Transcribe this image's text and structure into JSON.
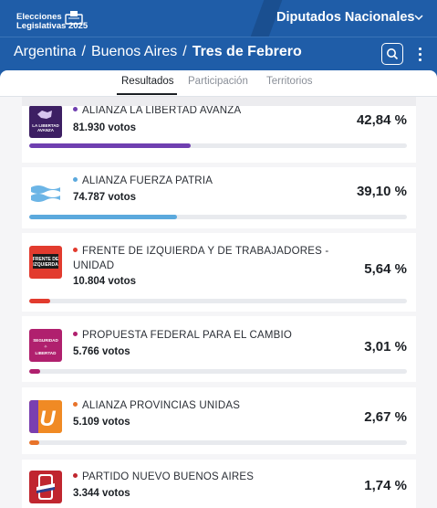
{
  "header": {
    "brand_line1": "Elecciones",
    "brand_line2": "Legislativas 2025",
    "chamber": "Diputados Nacionales",
    "background": "#1f5da8"
  },
  "breadcrumb": [
    "Argentina",
    "Buenos Aires",
    "Tres de Febrero"
  ],
  "breadcrumb_separator": "/",
  "tabs": [
    {
      "label": "Resultados",
      "active": true
    },
    {
      "label": "Participación",
      "active": false
    },
    {
      "label": "Territorios",
      "active": false
    }
  ],
  "results": [
    {
      "party": "ALIANZA LA LIBERTAD AVANZA",
      "votes": "81.930 votos",
      "percent": "42,84 %",
      "share": 42.84,
      "color": "#6f3fb0",
      "logo_text": "LA LIBERTAD AVANZA",
      "logo_bg": "#3d1f63"
    },
    {
      "party": "ALIANZA FUERZA PATRIA",
      "votes": "74.787 votos",
      "percent": "39,10 %",
      "share": 39.1,
      "color": "#5ba9dd",
      "logo_text": "",
      "logo_bg": "#ffffff"
    },
    {
      "party": "FRENTE DE IZQUIERDA Y DE TRABAJADORES - UNIDAD",
      "votes": "10.804 votos",
      "percent": "5,64 %",
      "share": 5.64,
      "color": "#e23b2e",
      "logo_text": "FRENTE DE IZQUIERDA",
      "logo_bg": "#e23b2e"
    },
    {
      "party": "PROPUESTA FEDERAL PARA EL CAMBIO",
      "votes": "5.766 votos",
      "percent": "3,01 %",
      "share": 3.01,
      "color": "#b0206e",
      "logo_text": "SEGURIDAD LIBERTAD",
      "logo_bg": "#b0206e"
    },
    {
      "party": "ALIANZA PROVINCIAS UNIDAS",
      "votes": "5.109 votos",
      "percent": "2,67 %",
      "share": 2.67,
      "color": "#e8732a",
      "logo_text": "U",
      "logo_bg": "#f08a24"
    },
    {
      "party": "PARTIDO NUEVO BUENOS AIRES",
      "votes": "3.344 votos",
      "percent": "1,74 %",
      "share": 1.74,
      "color": "#c0262f",
      "logo_text": "",
      "logo_bg": "#c0262f"
    }
  ]
}
